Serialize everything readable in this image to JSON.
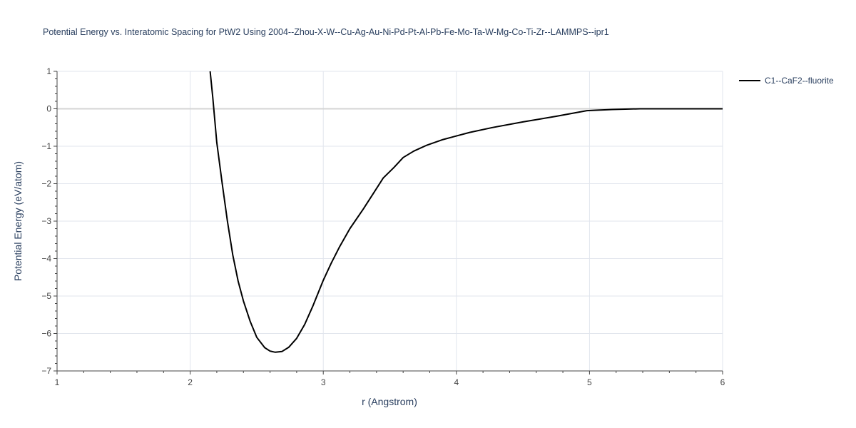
{
  "chart_data": {
    "type": "line",
    "title": "Potential Energy vs. Interatomic Spacing for PtW2 Using 2004--Zhou-X-W--Cu-Ag-Au-Ni-Pd-Pt-Al-Pb-Fe-Mo-Ta-W-Mg-Co-Ti-Zr--LAMMPS--ipr1",
    "xlabel": "r (Angstrom)",
    "ylabel": "Potential Energy (eV/atom)",
    "xlim": [
      1,
      6
    ],
    "ylim": [
      -7,
      1
    ],
    "x_ticks": [
      1,
      2,
      3,
      4,
      5,
      6
    ],
    "x_tick_labels": [
      "1",
      "2",
      "3",
      "4",
      "5",
      "6"
    ],
    "y_ticks": [
      1,
      0,
      -1,
      -2,
      -3,
      -4,
      -5,
      -6,
      -7
    ],
    "y_tick_labels": [
      "1",
      "0",
      "−1",
      "−2",
      "−3",
      "−4",
      "−5",
      "−6",
      "−7"
    ],
    "grid": true,
    "legend_position": "top-right",
    "series": [
      {
        "name": "C1--CaF2--fluorite",
        "color": "#000000",
        "x": [
          2.15,
          2.17,
          2.2,
          2.24,
          2.28,
          2.32,
          2.36,
          2.4,
          2.45,
          2.5,
          2.56,
          2.6,
          2.64,
          2.69,
          2.74,
          2.8,
          2.86,
          2.92,
          3.0,
          3.06,
          3.12,
          3.2,
          3.3,
          3.38,
          3.45,
          3.53,
          3.6,
          3.68,
          3.78,
          3.9,
          4.1,
          4.27,
          4.5,
          4.75,
          4.98,
          5.17,
          5.38,
          5.6,
          5.8,
          6.0
        ],
        "y": [
          1.0,
          0.3,
          -0.9,
          -1.98,
          -3.0,
          -3.9,
          -4.6,
          -5.13,
          -5.67,
          -6.1,
          -6.38,
          -6.47,
          -6.5,
          -6.48,
          -6.37,
          -6.13,
          -5.76,
          -5.28,
          -4.58,
          -4.12,
          -3.7,
          -3.2,
          -2.68,
          -2.24,
          -1.85,
          -1.57,
          -1.3,
          -1.13,
          -0.97,
          -0.82,
          -0.63,
          -0.5,
          -0.35,
          -0.2,
          -0.05,
          -0.02,
          0.0,
          0.0,
          0.0,
          0.0
        ]
      }
    ]
  }
}
